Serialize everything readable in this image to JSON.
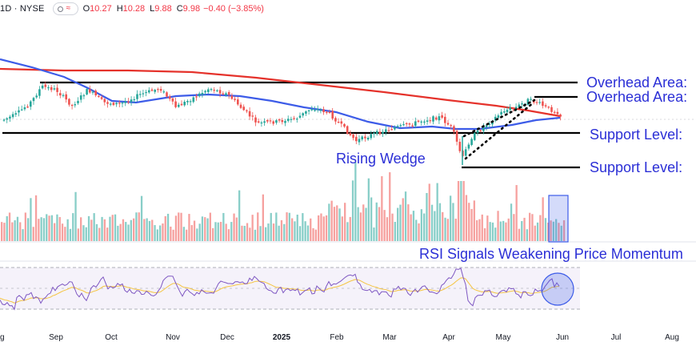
{
  "header": {
    "symbol": "1D · NYSE",
    "o_label": "O",
    "o_value": "10.27",
    "h_label": "H",
    "h_value": "10.28",
    "l_label": "L",
    "l_value": "9.88",
    "c_label": "C",
    "c_value": "9.98",
    "change": "−0.40 (−3.85%)"
  },
  "annotations": {
    "overhead_1": "Overhead Area:",
    "overhead_2": "Overhead Area:",
    "support_1": "Support Level:",
    "support_2": "Support Level:",
    "wedge": "Rising Wedge",
    "rsi": "RSI Signals Weakening Price Momentum"
  },
  "colors": {
    "up": "#26a69a",
    "down": "#ef5350",
    "ma_fast": "#3d5ce8",
    "ma_slow": "#e5322b",
    "annotation": "#2b2fd6",
    "rsi_line": "#7e57c2",
    "rsi_signal": "#f5c542"
  },
  "chart_data": {
    "type": "candlestick",
    "x_axis_labels": [
      "g",
      "Sep",
      "Oct",
      "Nov",
      "Dec",
      "2025",
      "Feb",
      "Mar",
      "Apr",
      "May",
      "Jun",
      "Jul",
      "Aug"
    ],
    "levels": {
      "overhead_1": "Overhead Area:",
      "overhead_2": "Overhead Area:",
      "support_1": "Support Level:",
      "support_2": "Support Level:"
    },
    "indicators": [
      "Price",
      "Moving Average (fast)",
      "Moving Average (slow)",
      "Volume",
      "RSI"
    ],
    "rsi_band": {
      "upper": 70,
      "lower": 30
    }
  }
}
